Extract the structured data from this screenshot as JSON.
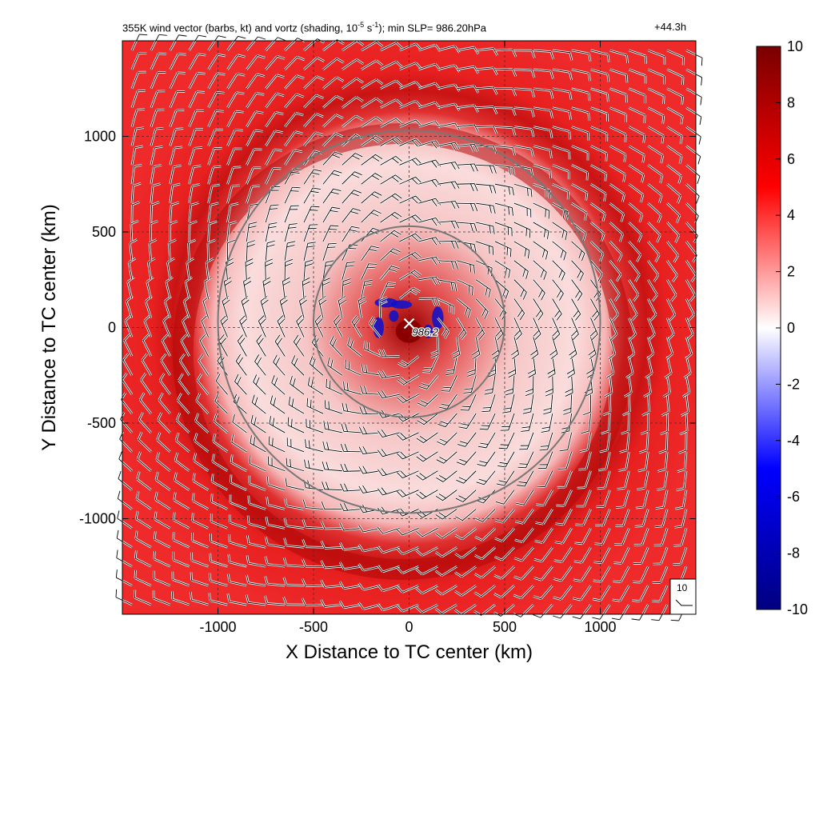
{
  "chart_data": {
    "type": "heatmap",
    "title_parts": {
      "prefix": "355K wind vector (barbs, kt) and vortz (shading, 10",
      "exp1": "-5",
      "unit": " s",
      "exp2": "-1",
      "suffix": "); min SLP= 986.20hPa"
    },
    "time_label": "+44.3h",
    "xlabel": "X Distance to TC center (km)",
    "ylabel": "Y Distance to TC center (km)",
    "xlim": [
      -1500,
      1500
    ],
    "ylim": [
      -1500,
      1500
    ],
    "xticks": [
      -1000,
      -500,
      0,
      500,
      1000
    ],
    "yticks": [
      -1000,
      -500,
      0,
      500,
      1000
    ],
    "tick_labels": [
      "-1000",
      "-500",
      "0",
      "500",
      "1000"
    ],
    "grid": "dashed",
    "colorbar": {
      "min": -10,
      "max": 10,
      "ticks": [
        10,
        8,
        6,
        4,
        2,
        0,
        -2,
        -4,
        -6,
        -8,
        -10
      ],
      "tick_labels": [
        "10",
        "8",
        "6",
        "4",
        "2",
        "0",
        "-2",
        "-4",
        "-6",
        "-8",
        "-10"
      ],
      "colors": [
        "#000080",
        "#0000ff",
        "#ffffff",
        "#ff0000",
        "#7a0000"
      ]
    },
    "range_circles_km": [
      500,
      1000
    ],
    "center_marker": {
      "x": 0,
      "y": 0,
      "label": "986.2"
    },
    "reference_barb_label": "10"
  }
}
